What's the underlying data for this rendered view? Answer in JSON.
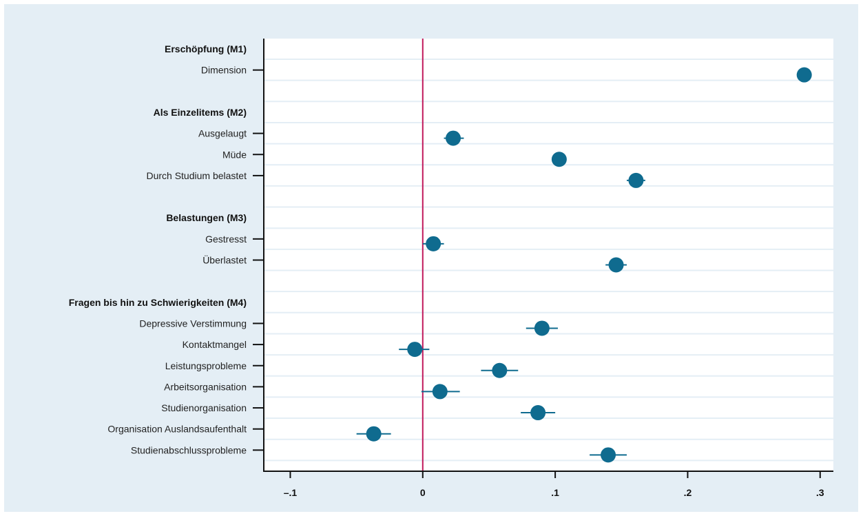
{
  "chart_data": {
    "type": "scatter",
    "subtype": "coefficient-plot",
    "xlim": [
      -0.12,
      0.31
    ],
    "xticks": [
      -0.1,
      0,
      0.1,
      0.2,
      0.3
    ],
    "xtick_labels": [
      "–.1",
      "0",
      ".1",
      ".2",
      ".3"
    ],
    "reference_line_x": 0,
    "grid": "horizontal",
    "rows": [
      {
        "label": "Erschöpfung (M1)",
        "header": true
      },
      {
        "label": "Dimension",
        "value": 0.288,
        "ci": [
          0.286,
          0.29
        ]
      },
      {
        "label": "",
        "blank": true
      },
      {
        "label": "Als Einzelitems (M2)",
        "header": true
      },
      {
        "label": "Ausgelaugt",
        "value": 0.023,
        "ci": [
          0.016,
          0.031
        ]
      },
      {
        "label": "Müde",
        "value": 0.103,
        "ci": [
          0.099,
          0.107
        ]
      },
      {
        "label": "Durch Studium belastet",
        "value": 0.161,
        "ci": [
          0.154,
          0.168
        ]
      },
      {
        "label": "",
        "blank": true
      },
      {
        "label": "Belastungen (M3)",
        "header": true
      },
      {
        "label": "Gestresst",
        "value": 0.008,
        "ci": [
          0.0,
          0.016
        ]
      },
      {
        "label": "Überlastet",
        "value": 0.146,
        "ci": [
          0.138,
          0.154
        ]
      },
      {
        "label": "",
        "blank": true
      },
      {
        "label": "Fragen bis hin zu Schwierigkeiten (M4)",
        "header": true
      },
      {
        "label": "Depressive Verstimmung",
        "value": 0.09,
        "ci": [
          0.078,
          0.102
        ]
      },
      {
        "label": "Kontaktmangel",
        "value": -0.006,
        "ci": [
          -0.018,
          0.005
        ]
      },
      {
        "label": "Leistungsprobleme",
        "value": 0.058,
        "ci": [
          0.044,
          0.072
        ]
      },
      {
        "label": "Arbeitsorganisation",
        "value": 0.013,
        "ci": [
          -0.001,
          0.028
        ]
      },
      {
        "label": "Studienorganisation",
        "value": 0.087,
        "ci": [
          0.074,
          0.1
        ]
      },
      {
        "label": "Organisation Auslandsaufenthalt",
        "value": -0.037,
        "ci": [
          -0.05,
          -0.024
        ]
      },
      {
        "label": "Studienabschlussprobleme",
        "value": 0.14,
        "ci": [
          0.126,
          0.154
        ]
      }
    ],
    "colors": {
      "marker": "#0f6b8f",
      "reference_line": "#c0185a",
      "grid": "#e4eef5",
      "axis": "#111111"
    }
  }
}
